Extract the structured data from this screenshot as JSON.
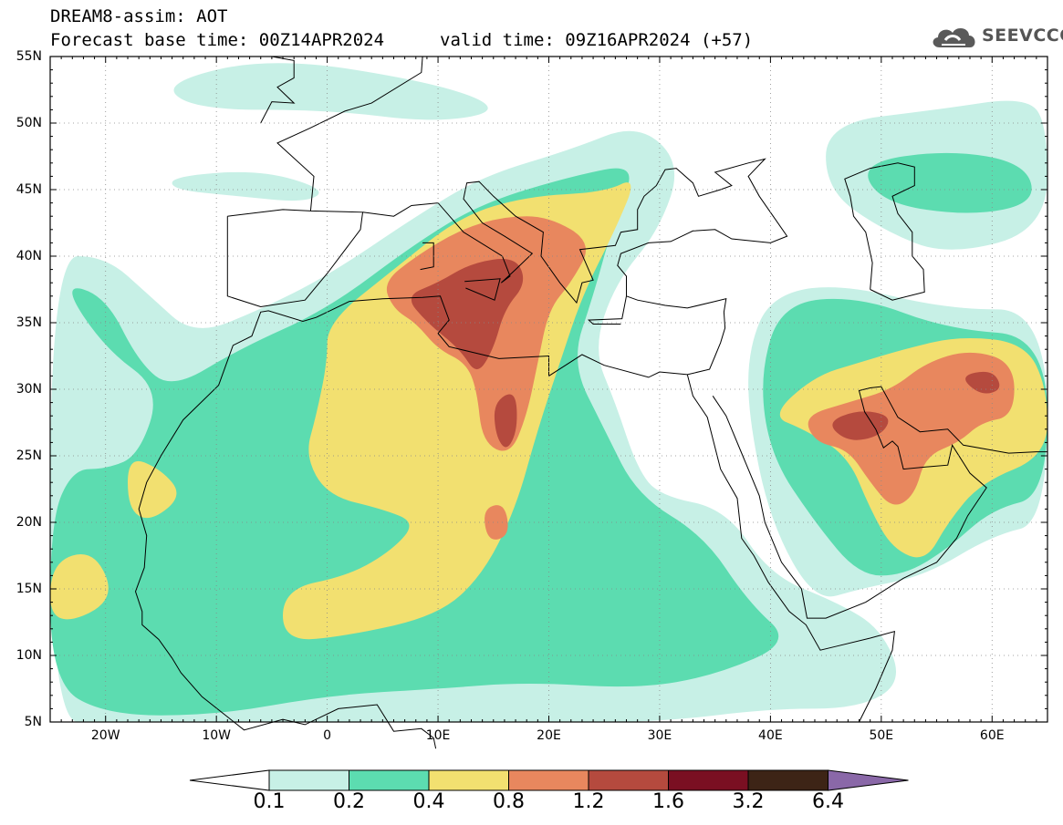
{
  "header": {
    "title": "DREAM8-assim: AOT",
    "base_time": "Forecast base time: 00Z14APR2024",
    "valid_time": "valid time: 09Z16APR2024 (+57)",
    "logo_text": "SEEVCCC",
    "logo_icon": "cloud-logo-icon"
  },
  "axes": {
    "y_ticks": [
      "55N",
      "50N",
      "45N",
      "40N",
      "35N",
      "30N",
      "25N",
      "20N",
      "15N",
      "10N",
      "5N"
    ],
    "x_ticks": [
      "20W",
      "10W",
      "0",
      "10E",
      "20E",
      "30E",
      "40E",
      "50E",
      "60E"
    ]
  },
  "colorbar": {
    "labels": [
      "0.1",
      "0.2",
      "0.4",
      "0.8",
      "1.2",
      "1.6",
      "3.2",
      "6.4"
    ],
    "colors": [
      "#ffffff",
      "#c7f0e6",
      "#5cdcb0",
      "#f2e070",
      "#e8875e",
      "#b54a3e",
      "#7a0f22",
      "#3d2416",
      "#8a68a8"
    ]
  },
  "chart_data": {
    "type": "heatmap",
    "variable": "AOT",
    "lon_range": [
      -25,
      65
    ],
    "lat_range": [
      5,
      55
    ],
    "levels": [
      0.1,
      0.2,
      0.4,
      0.8,
      1.2,
      1.6,
      3.2,
      6.4
    ],
    "level_colors": [
      "#c7f0e6",
      "#5cdcb0",
      "#f2e070",
      "#e8875e",
      "#b54a3e",
      "#7a0f22",
      "#3d2416"
    ],
    "y_tick_labels": [
      "55N",
      "50N",
      "45N",
      "40N",
      "35N",
      "30N",
      "25N",
      "20N",
      "15N",
      "10N",
      "5N"
    ],
    "x_tick_labels": [
      "20W",
      "10W",
      "0",
      "10E",
      "20E",
      "30E",
      "40E",
      "50E",
      "60E"
    ],
    "grid": true,
    "fields": [
      {
        "level": 1,
        "rings": [
          [
            -25,
            40
          ],
          [
            -20,
            40
          ],
          [
            -16,
            37
          ],
          [
            -12,
            34
          ],
          [
            -6,
            36
          ],
          [
            0,
            38.5
          ],
          [
            8,
            43
          ],
          [
            14,
            46
          ],
          [
            22,
            48
          ],
          [
            28,
            50
          ],
          [
            32,
            47
          ],
          [
            30,
            42
          ],
          [
            26,
            38
          ],
          [
            24,
            33
          ],
          [
            26,
            29
          ],
          [
            28,
            24
          ],
          [
            30,
            22
          ],
          [
            36,
            21
          ],
          [
            40,
            16
          ],
          [
            46,
            14
          ],
          [
            50,
            12
          ],
          [
            52,
            8
          ],
          [
            48,
            6
          ],
          [
            40,
            6
          ],
          [
            30,
            5
          ],
          [
            20,
            5
          ],
          [
            10,
            5
          ],
          [
            0,
            5
          ],
          [
            -10,
            5
          ],
          [
            -20,
            5
          ],
          [
            -25,
            5
          ]
        ]
      },
      {
        "level": 1,
        "rings": [
          [
            40,
            37
          ],
          [
            46,
            38
          ],
          [
            56,
            36
          ],
          [
            65,
            36
          ],
          [
            65,
            20
          ],
          [
            60,
            19
          ],
          [
            54,
            16
          ],
          [
            48,
            15
          ],
          [
            44,
            14
          ],
          [
            40,
            20
          ],
          [
            38,
            28
          ],
          [
            38,
            33
          ]
        ]
      },
      {
        "level": 1,
        "rings": [
          [
            45,
            50
          ],
          [
            55,
            51
          ],
          [
            63,
            52
          ],
          [
            65,
            50
          ],
          [
            65,
            42
          ],
          [
            56,
            40
          ],
          [
            50,
            42
          ],
          [
            45,
            45
          ]
        ]
      },
      {
        "level": 1,
        "rings": [
          [
            -14,
            46
          ],
          [
            -6,
            46.5
          ],
          [
            0,
            45
          ],
          [
            -2,
            44
          ],
          [
            -8,
            44.5
          ],
          [
            -14,
            45
          ]
        ]
      },
      {
        "level": 1,
        "rings": [
          [
            -15,
            53
          ],
          [
            -5,
            55
          ],
          [
            10,
            53
          ],
          [
            16,
            51
          ],
          [
            10,
            50
          ],
          [
            0,
            51
          ],
          [
            -12,
            51
          ]
        ]
      },
      {
        "level": 2,
        "rings": [
          [
            -24,
            38
          ],
          [
            -20,
            37
          ],
          [
            -17,
            32
          ],
          [
            -14,
            30
          ],
          [
            -8,
            33
          ],
          [
            0,
            36
          ],
          [
            8,
            41
          ],
          [
            14,
            44
          ],
          [
            22,
            46
          ],
          [
            28,
            47
          ],
          [
            26,
            43
          ],
          [
            24,
            37
          ],
          [
            22,
            32
          ],
          [
            25,
            27
          ],
          [
            28,
            22
          ],
          [
            34,
            19
          ],
          [
            38,
            14
          ],
          [
            42,
            11
          ],
          [
            35,
            8.5
          ],
          [
            28,
            7.5
          ],
          [
            18,
            8
          ],
          [
            10,
            7.5
          ],
          [
            0,
            7
          ],
          [
            -10,
            5.5
          ],
          [
            -20,
            5.5
          ],
          [
            -25,
            8
          ],
          [
            -25,
            20
          ],
          [
            -23,
            24
          ],
          [
            -20,
            24
          ],
          [
            -17,
            25
          ],
          [
            -15,
            30
          ],
          [
            -20,
            33
          ]
        ]
      },
      {
        "level": 2,
        "rings": [
          [
            41,
            36.5
          ],
          [
            48,
            37
          ],
          [
            56,
            34.5
          ],
          [
            65,
            34
          ],
          [
            65,
            22
          ],
          [
            60,
            21
          ],
          [
            56,
            18
          ],
          [
            52,
            16
          ],
          [
            48,
            16
          ],
          [
            44,
            20
          ],
          [
            40,
            25
          ],
          [
            39,
            31
          ]
        ]
      },
      {
        "level": 2,
        "rings": [
          [
            48,
            47
          ],
          [
            56,
            48
          ],
          [
            63,
            47
          ],
          [
            64,
            44
          ],
          [
            58,
            43
          ],
          [
            50,
            44
          ]
        ]
      },
      {
        "level": 3,
        "rings": [
          [
            0,
            35
          ],
          [
            6,
            39
          ],
          [
            12,
            43
          ],
          [
            18,
            44.5
          ],
          [
            25,
            44.8
          ],
          [
            28,
            46
          ],
          [
            26,
            42
          ],
          [
            23,
            37
          ],
          [
            21,
            32
          ],
          [
            19,
            27
          ],
          [
            17,
            21
          ],
          [
            14,
            16
          ],
          [
            10,
            13
          ],
          [
            2,
            11.5
          ],
          [
            -4,
            11
          ],
          [
            -4,
            15
          ],
          [
            2,
            16
          ],
          [
            6,
            18
          ],
          [
            8,
            20
          ],
          [
            5,
            21
          ],
          [
            0,
            22
          ],
          [
            -2,
            25
          ],
          [
            -1,
            28
          ],
          [
            0,
            32
          ]
        ]
      },
      {
        "level": 3,
        "rings": [
          [
            -18,
            25
          ],
          [
            -15,
            24
          ],
          [
            -13,
            22
          ],
          [
            -16,
            20
          ],
          [
            -18,
            21
          ]
        ]
      },
      {
        "level": 3,
        "rings": [
          [
            -25,
            17
          ],
          [
            -21,
            18
          ],
          [
            -19,
            14
          ],
          [
            -25,
            12
          ]
        ]
      },
      {
        "level": 3,
        "rings": [
          [
            44,
            31
          ],
          [
            48,
            32
          ],
          [
            52,
            33
          ],
          [
            57,
            34
          ],
          [
            63,
            33.5
          ],
          [
            65,
            30
          ],
          [
            65,
            25
          ],
          [
            59,
            23
          ],
          [
            56,
            20
          ],
          [
            54,
            17
          ],
          [
            51,
            18
          ],
          [
            49,
            21
          ],
          [
            47,
            25
          ],
          [
            43,
            27
          ],
          [
            40,
            28
          ]
        ]
      },
      {
        "level": 4,
        "rings": [
          [
            5,
            38
          ],
          [
            8,
            40
          ],
          [
            12,
            42
          ],
          [
            16,
            43
          ],
          [
            20,
            43
          ],
          [
            24,
            41
          ],
          [
            22,
            38
          ],
          [
            20,
            36
          ],
          [
            19,
            32
          ],
          [
            18,
            28
          ],
          [
            16.5,
            25
          ],
          [
            14,
            26
          ],
          [
            13.5,
            30
          ],
          [
            12.5,
            32
          ],
          [
            10,
            33
          ],
          [
            8,
            35
          ],
          [
            6,
            36
          ]
        ]
      },
      {
        "level": 4,
        "rings": [
          [
            43,
            28
          ],
          [
            47,
            29
          ],
          [
            51,
            30
          ],
          [
            54,
            32
          ],
          [
            58,
            33
          ],
          [
            62,
            32
          ],
          [
            62,
            28
          ],
          [
            59,
            27.5
          ],
          [
            57,
            26
          ],
          [
            54,
            25
          ],
          [
            53,
            22
          ],
          [
            51,
            21
          ],
          [
            49,
            23
          ],
          [
            47,
            25.5
          ],
          [
            44,
            26
          ]
        ]
      },
      {
        "level": 4,
        "rings": [
          [
            14,
            21
          ],
          [
            16,
            21.5
          ],
          [
            16.5,
            19
          ],
          [
            14.5,
            18.5
          ]
        ]
      },
      {
        "level": 5,
        "rings": [
          [
            7,
            37
          ],
          [
            10,
            38
          ],
          [
            13,
            39.5
          ],
          [
            17,
            40
          ],
          [
            18,
            38
          ],
          [
            16,
            36
          ],
          [
            15,
            33
          ],
          [
            13.5,
            31
          ],
          [
            12,
            33
          ],
          [
            9,
            35
          ]
        ]
      },
      {
        "level": 5,
        "rings": [
          [
            15,
            29
          ],
          [
            17,
            30
          ],
          [
            17.2,
            27
          ],
          [
            16.2,
            25.3
          ],
          [
            15.2,
            26.5
          ]
        ]
      },
      {
        "level": 5,
        "rings": [
          [
            45,
            27.5
          ],
          [
            48,
            28.5
          ],
          [
            51,
            28
          ],
          [
            50,
            26.5
          ],
          [
            47,
            26
          ]
        ]
      },
      {
        "level": 5,
        "rings": [
          [
            57,
            31
          ],
          [
            60,
            31.5
          ],
          [
            61,
            30
          ],
          [
            59,
            29.5
          ]
        ]
      }
    ]
  }
}
